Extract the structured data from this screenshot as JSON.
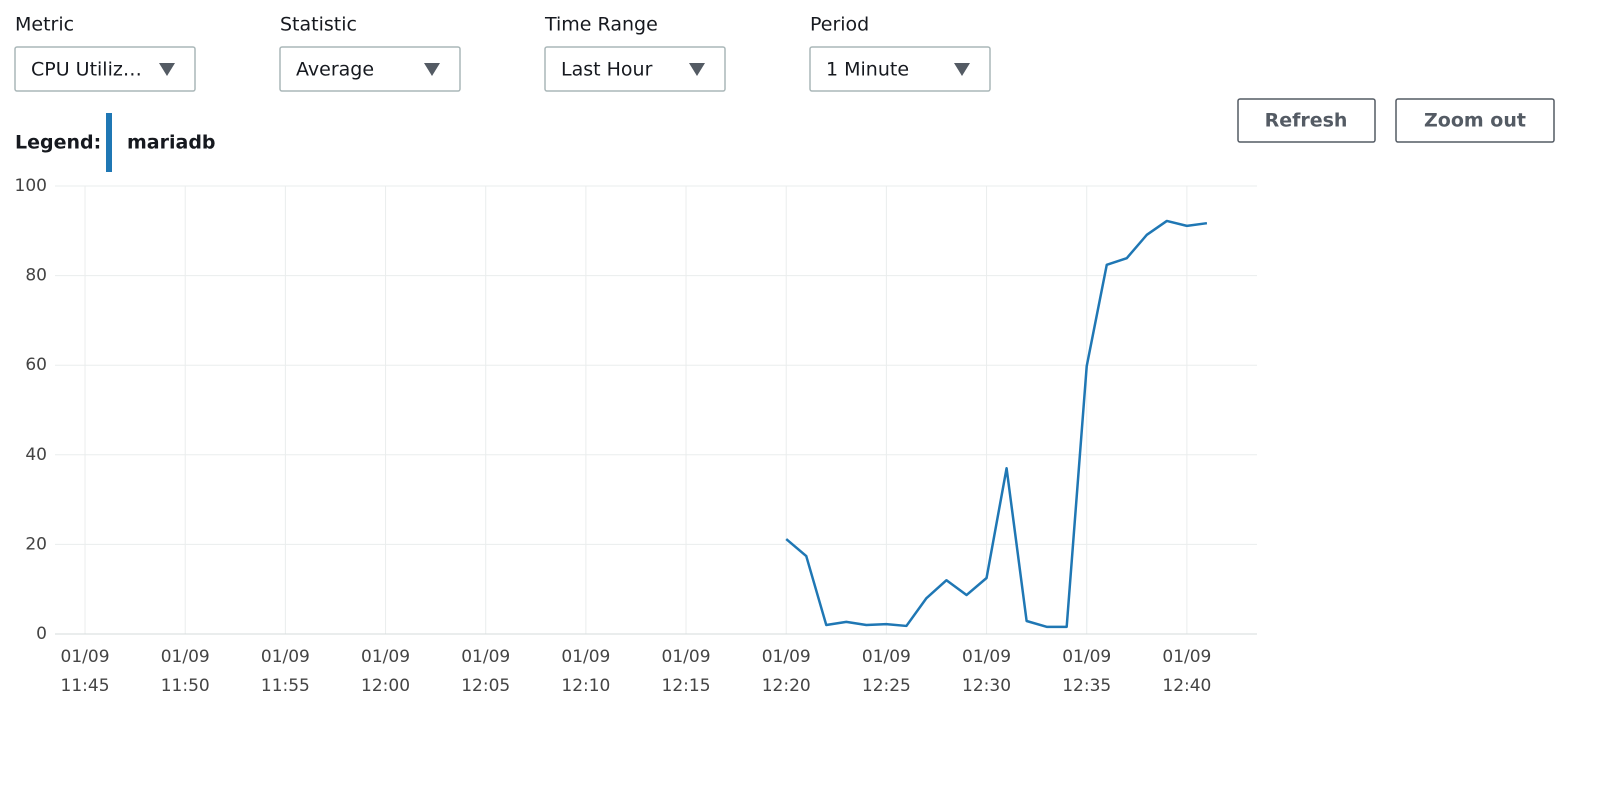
{
  "controls": [
    {
      "label": "Metric",
      "value": "CPU Utiliz…"
    },
    {
      "label": "Statistic",
      "value": "Average"
    },
    {
      "label": "Time Range",
      "value": "Last Hour"
    },
    {
      "label": "Period",
      "value": "1 Minute"
    }
  ],
  "buttons": [
    "Refresh",
    "Zoom out"
  ],
  "legend_label": "Legend:",
  "chart_data": {
    "type": "line",
    "x": [
      "12:20",
      "12:21",
      "12:22",
      "12:23",
      "12:24",
      "12:25",
      "12:26",
      "12:27",
      "12:28",
      "12:29",
      "12:30",
      "12:31",
      "12:32",
      "12:33",
      "12:34",
      "12:35",
      "12:36",
      "12:37",
      "12:38",
      "12:39",
      "12:40",
      "12:41"
    ],
    "series": [
      {
        "name": "mariadb",
        "color": "#1f77b4",
        "values": [
          21.2,
          17.4,
          2.0,
          2.7,
          2.0,
          2.2,
          1.8,
          8.0,
          12.0,
          8.7,
          12.5,
          37.0,
          2.9,
          1.6,
          1.6,
          59.8,
          82.4,
          83.9,
          89.1,
          92.2,
          91.1,
          91.7
        ]
      }
    ],
    "xlim": [
      "11:43:30",
      "12:43:30"
    ],
    "xticks": [
      {
        "value": "11:45",
        "date": "01/09",
        "time": "11:45"
      },
      {
        "value": "11:50",
        "date": "01/09",
        "time": "11:50"
      },
      {
        "value": "11:55",
        "date": "01/09",
        "time": "11:55"
      },
      {
        "value": "12:00",
        "date": "01/09",
        "time": "12:00"
      },
      {
        "value": "12:05",
        "date": "01/09",
        "time": "12:05"
      },
      {
        "value": "12:10",
        "date": "01/09",
        "time": "12:10"
      },
      {
        "value": "12:15",
        "date": "01/09",
        "time": "12:15"
      },
      {
        "value": "12:20",
        "date": "01/09",
        "time": "12:20"
      },
      {
        "value": "12:25",
        "date": "01/09",
        "time": "12:25"
      },
      {
        "value": "12:30",
        "date": "01/09",
        "time": "12:30"
      },
      {
        "value": "12:35",
        "date": "01/09",
        "time": "12:35"
      },
      {
        "value": "12:40",
        "date": "01/09",
        "time": "12:40"
      }
    ],
    "ylim": [
      0,
      100
    ],
    "yticks": [
      0,
      20,
      40,
      60,
      80,
      100
    ],
    "grid": true
  }
}
